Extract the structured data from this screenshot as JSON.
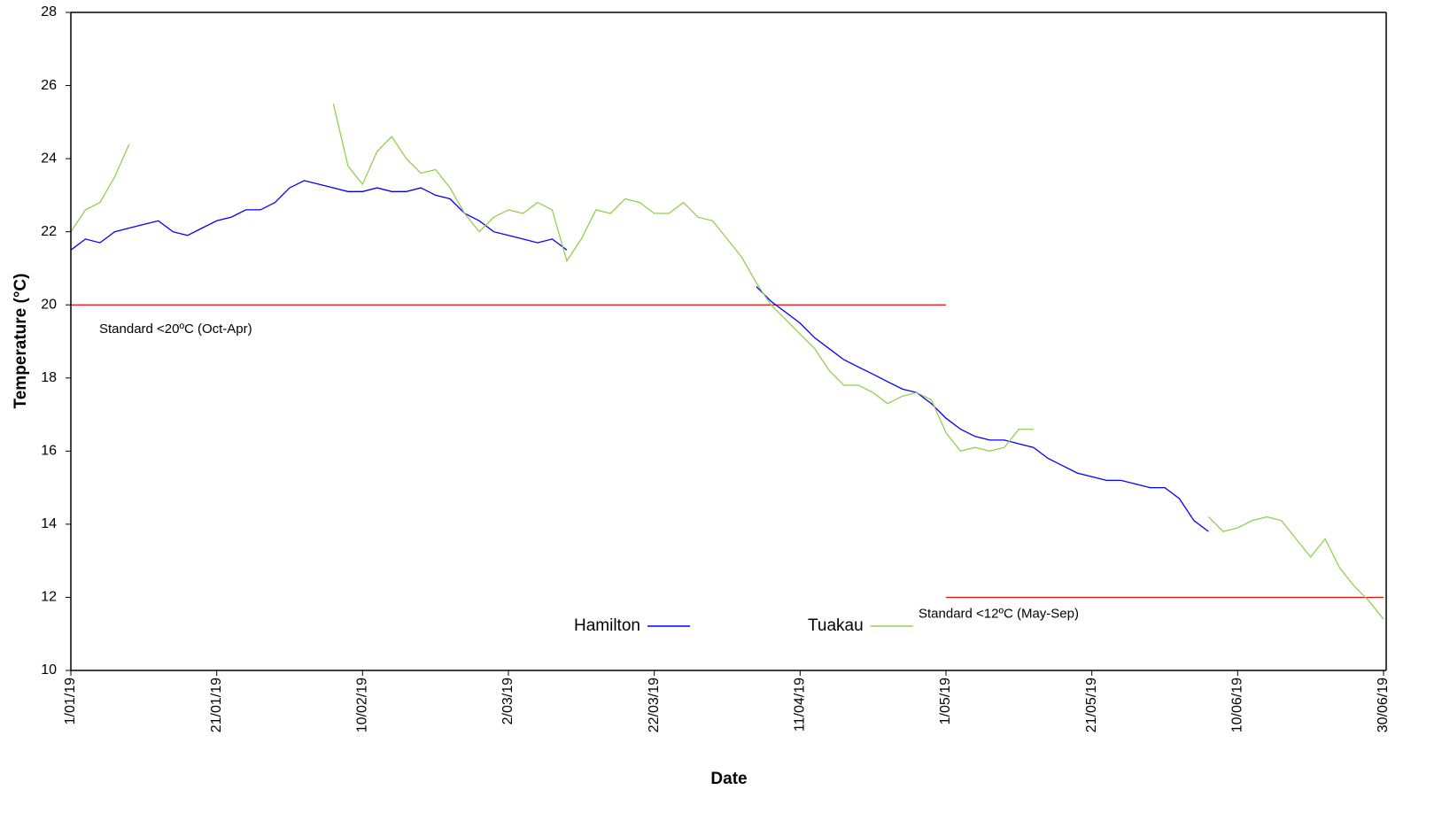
{
  "chart_data": {
    "type": "line",
    "x_label": "Date",
    "y_label": "Temperature (°C)",
    "x": [
      "1/01/19",
      "3/01/19",
      "5/01/19",
      "7/01/19",
      "9/01/19",
      "11/01/19",
      "13/01/19",
      "15/01/19",
      "17/01/19",
      "19/01/19",
      "21/01/19",
      "23/01/19",
      "25/01/19",
      "27/01/19",
      "29/01/19",
      "31/01/19",
      "2/02/19",
      "4/02/19",
      "6/02/19",
      "8/02/19",
      "10/02/19",
      "12/02/19",
      "14/02/19",
      "16/02/19",
      "18/02/19",
      "20/02/19",
      "22/02/19",
      "24/02/19",
      "26/02/19",
      "28/02/19",
      "2/03/19",
      "4/03/19",
      "6/03/19",
      "8/03/19",
      "10/03/19",
      "12/03/19",
      "14/03/19",
      "16/03/19",
      "18/03/19",
      "20/03/19",
      "22/03/19",
      "24/03/19",
      "26/03/19",
      "28/03/19",
      "30/03/19",
      "1/04/19",
      "3/04/19",
      "5/04/19",
      "7/04/19",
      "9/04/19",
      "11/04/19",
      "13/04/19",
      "15/04/19",
      "17/04/19",
      "19/04/19",
      "21/04/19",
      "23/04/19",
      "25/04/19",
      "27/04/19",
      "29/04/19",
      "1/05/19",
      "3/05/19",
      "5/05/19",
      "7/05/19",
      "9/05/19",
      "11/05/19",
      "13/05/19",
      "15/05/19",
      "17/05/19",
      "19/05/19",
      "21/05/19",
      "23/05/19",
      "25/05/19",
      "27/05/19",
      "29/05/19",
      "31/05/19",
      "2/06/19",
      "4/06/19",
      "6/06/19",
      "8/06/19",
      "10/06/19",
      "12/06/19",
      "14/06/19",
      "16/06/19",
      "18/06/19",
      "20/06/19",
      "22/06/19",
      "24/06/19",
      "26/06/19",
      "28/06/19",
      "30/06/19"
    ],
    "series": [
      {
        "name": "Hamilton",
        "color": "#0000ff",
        "values": [
          21.5,
          21.8,
          21.7,
          22,
          22.1,
          22.2,
          22.3,
          22,
          21.9,
          22.1,
          22.3,
          22.4,
          22.6,
          22.6,
          22.8,
          23.2,
          23.4,
          23.3,
          23.2,
          23.1,
          23.1,
          23.2,
          23.1,
          23.1,
          23.2,
          23,
          22.9,
          22.5,
          22.3,
          22,
          21.9,
          21.8,
          21.7,
          21.8,
          21.5,
          null,
          null,
          null,
          null,
          null,
          null,
          null,
          null,
          null,
          null,
          null,
          null,
          20.5,
          20.1,
          19.8,
          19.5,
          19.1,
          18.8,
          18.5,
          18.3,
          18.1,
          17.9,
          17.7,
          17.6,
          17.3,
          16.9,
          16.6,
          16.4,
          16.3,
          16.3,
          16.2,
          16.1,
          15.8,
          15.6,
          15.4,
          15.3,
          15.2,
          15.2,
          15.1,
          15,
          15,
          14.7,
          14.1,
          13.8,
          null,
          null,
          null,
          null,
          null,
          null,
          null,
          null,
          null,
          null,
          null,
          null
        ]
      },
      {
        "name": "Tuakau",
        "color": "#92d050",
        "values": [
          22,
          22.6,
          22.8,
          23.5,
          24.4,
          null,
          null,
          null,
          null,
          null,
          null,
          null,
          null,
          null,
          null,
          null,
          null,
          null,
          25.5,
          23.8,
          23.3,
          24.2,
          24.6,
          24,
          23.6,
          23.7,
          23.2,
          22.5,
          22,
          22.4,
          22.6,
          22.5,
          22.8,
          22.6,
          21.2,
          21.8,
          22.6,
          22.5,
          22.9,
          22.8,
          22.5,
          22.5,
          22.8,
          22.4,
          22.3,
          21.8,
          21.3,
          20.6,
          20,
          19.6,
          19.2,
          18.8,
          18.2,
          17.8,
          17.8,
          17.6,
          17.3,
          17.5,
          17.6,
          17.4,
          16.5,
          16,
          16.1,
          16,
          16.1,
          16.6,
          16.6,
          null,
          null,
          null,
          null,
          null,
          null,
          null,
          null,
          null,
          null,
          null,
          14.2,
          13.8,
          13.9,
          14.1,
          14.2,
          14.1,
          13.6,
          13.1,
          13.6,
          12.8,
          12.3,
          11.9,
          11.4
        ]
      }
    ],
    "xlim": [
      "1/01/19",
      "30/06/19"
    ],
    "xticks": [
      "1/01/19",
      "21/01/19",
      "10/02/19",
      "2/03/19",
      "22/03/19",
      "11/04/19",
      "1/05/19",
      "21/05/19",
      "10/06/19",
      "30/06/19"
    ],
    "ylim": [
      10,
      28
    ],
    "yticks": [
      10,
      12,
      14,
      16,
      18,
      20,
      22,
      24,
      26,
      28
    ],
    "reference_lines": [
      {
        "value": 20,
        "from": "1/01/19",
        "to": "1/05/19",
        "color": "#ff0000",
        "label": "Standard <20ºC (Oct-Apr)"
      },
      {
        "value": 12,
        "from": "1/05/19",
        "to": "30/06/19",
        "color": "#ff0000",
        "label": "Standard <12ºC (May-Sep)"
      }
    ],
    "legend": "lower center",
    "grid": false
  }
}
